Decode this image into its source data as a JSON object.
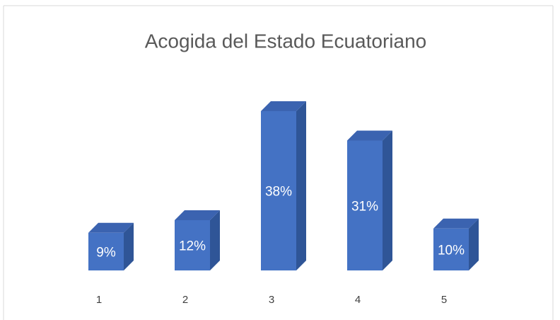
{
  "chart_data": {
    "type": "bar3d",
    "title": "Acogida del Estado Ecuatoriano",
    "categories": [
      "1",
      "2",
      "3",
      "4",
      "5"
    ],
    "values": [
      9,
      12,
      38,
      31,
      10
    ],
    "value_labels": [
      "9%",
      "12%",
      "38%",
      "31%",
      "10%"
    ],
    "color": "#4472c4"
  }
}
